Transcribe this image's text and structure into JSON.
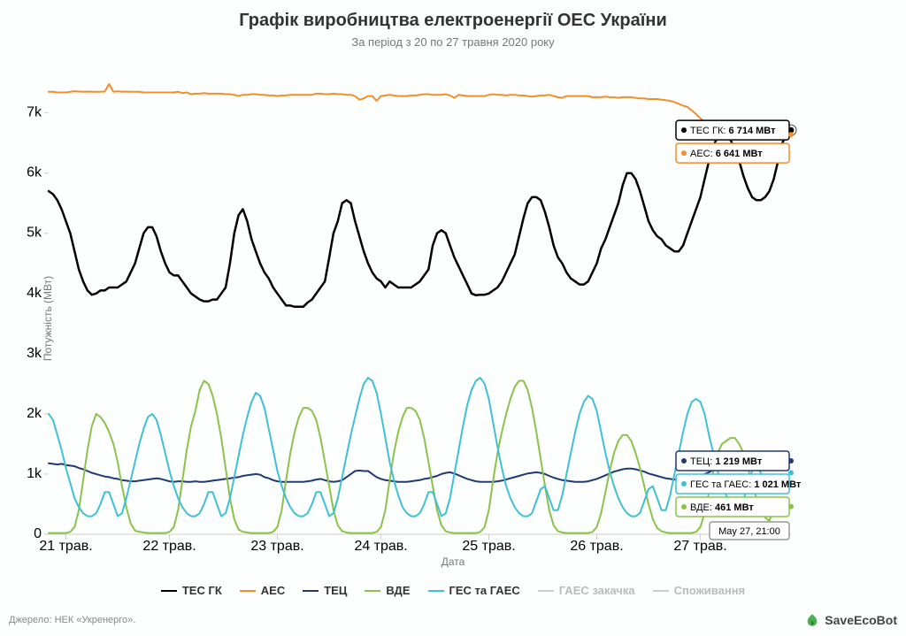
{
  "title": "Графік виробництва електроенергії ОЕС України",
  "subtitle": "За період з 20 по 27 травня 2020 року",
  "xlabel": "Дата",
  "ylabel": "Потужність (МВт)",
  "credits": {
    "left": "Джерело: НЕК «Укренерго».",
    "right": "SaveEcoBot"
  },
  "xlabels": [
    "21 трав.",
    "22 трав.",
    "23 трав.",
    "24 трав.",
    "25 трав.",
    "26 трав.",
    "27 трав."
  ],
  "ylim": [
    0,
    7700
  ],
  "yticks": [
    0,
    1000,
    2000,
    3000,
    4000,
    5000,
    6000,
    7000
  ],
  "yticklabels": [
    "0",
    "1k",
    "2k",
    "3k",
    "4k",
    "5k",
    "6k",
    "7k"
  ],
  "legend": [
    {
      "key": "tes",
      "label": "ТЕС ГК",
      "color": "#000000",
      "active": true
    },
    {
      "key": "aes",
      "label": "АЕС",
      "color": "#f28e2b",
      "active": true
    },
    {
      "key": "tec",
      "label": "ТЕЦ",
      "color": "#1f3b73",
      "active": true
    },
    {
      "key": "vde",
      "label": "ВДЕ",
      "color": "#8bc34a",
      "active": true
    },
    {
      "key": "hes",
      "label": "ГЕС та ГАЕС",
      "color": "#3fc0d6",
      "active": true
    },
    {
      "key": "gaes_pump",
      "label": "ГАЕС закачка",
      "color": "#bbbbbb",
      "active": false
    },
    {
      "key": "cons",
      "label": "Споживання",
      "color": "#bbbbbb",
      "active": false
    }
  ],
  "hover": {
    "time_label": "May 27, 21:00",
    "points": [
      {
        "key": "tes",
        "label": "ТЕС ГК:",
        "value": "6 714 МВт",
        "y": 6714,
        "color": "#000000"
      },
      {
        "key": "aes",
        "label": "АЕС:",
        "value": "6 641 МВт",
        "y": 6641,
        "color": "#f28e2b"
      },
      {
        "key": "tec",
        "label": "ТЕЦ:",
        "value": "1 219 МВт",
        "y": 1219,
        "color": "#1f3b73"
      },
      {
        "key": "hes",
        "label": "ГЕС та ГАЕС:",
        "value": "1 021 МВт",
        "y": 1021,
        "color": "#3fc0d6"
      },
      {
        "key": "vde",
        "label": "ВДЕ:",
        "value": "461 МВт",
        "y": 461,
        "color": "#8bc34a"
      }
    ]
  },
  "series": {
    "aes": {
      "color": "#f28e2b",
      "width": 2,
      "data": [
        7350,
        7350,
        7340,
        7340,
        7340,
        7350,
        7360,
        7355,
        7350,
        7355,
        7350,
        7350,
        7350,
        7355,
        7480,
        7350,
        7360,
        7350,
        7355,
        7350,
        7350,
        7350,
        7340,
        7340,
        7340,
        7340,
        7340,
        7340,
        7340,
        7340,
        7350,
        7330,
        7340,
        7310,
        7320,
        7320,
        7330,
        7320,
        7320,
        7320,
        7320,
        7310,
        7310,
        7300,
        7280,
        7300,
        7300,
        7310,
        7310,
        7300,
        7300,
        7290,
        7290,
        7280,
        7290,
        7290,
        7300,
        7300,
        7300,
        7300,
        7300,
        7300,
        7320,
        7320,
        7310,
        7310,
        7320,
        7310,
        7310,
        7300,
        7300,
        7280,
        7220,
        7240,
        7280,
        7280,
        7200,
        7280,
        7290,
        7300,
        7290,
        7280,
        7280,
        7280,
        7290,
        7290,
        7300,
        7310,
        7310,
        7300,
        7300,
        7300,
        7310,
        7290,
        7250,
        7300,
        7290,
        7280,
        7280,
        7280,
        7280,
        7280,
        7300,
        7310,
        7300,
        7300,
        7290,
        7300,
        7300,
        7290,
        7290,
        7280,
        7270,
        7280,
        7290,
        7290,
        7300,
        7280,
        7260,
        7250,
        7280,
        7280,
        7280,
        7280,
        7280,
        7280,
        7260,
        7260,
        7260,
        7270,
        7260,
        7260,
        7250,
        7260,
        7260,
        7260,
        7250,
        7240,
        7240,
        7230,
        7230,
        7230,
        7220,
        7210,
        7200,
        7180,
        7150,
        7120,
        7100,
        7040,
        6980,
        6910,
        6850,
        6800,
        6770,
        6740,
        6710,
        6690,
        6680,
        6670,
        6660,
        6660,
        6650,
        6640,
        6640,
        6640,
        6641
      ]
    },
    "tes": {
      "color": "#000000",
      "width": 2.5,
      "data": [
        5700,
        5650,
        5550,
        5400,
        5200,
        5000,
        4700,
        4400,
        4200,
        4050,
        3980,
        4000,
        4050,
        4050,
        4100,
        4100,
        4100,
        4150,
        4200,
        4350,
        4500,
        4750,
        5000,
        5100,
        5100,
        4950,
        4700,
        4500,
        4350,
        4300,
        4300,
        4200,
        4100,
        4000,
        3950,
        3900,
        3870,
        3870,
        3900,
        3900,
        4000,
        4100,
        4500,
        5000,
        5300,
        5400,
        5200,
        4900,
        4700,
        4500,
        4350,
        4250,
        4100,
        4000,
        3900,
        3800,
        3800,
        3780,
        3780,
        3780,
        3850,
        3900,
        4000,
        4100,
        4200,
        4600,
        5000,
        5200,
        5500,
        5550,
        5500,
        5200,
        4950,
        4700,
        4500,
        4350,
        4250,
        4200,
        4100,
        4200,
        4150,
        4100,
        4100,
        4100,
        4100,
        4150,
        4200,
        4300,
        4400,
        4800,
        5000,
        5050,
        5000,
        4800,
        4600,
        4450,
        4300,
        4150,
        4000,
        3970,
        3980,
        3980,
        4000,
        4050,
        4100,
        4200,
        4350,
        4500,
        4650,
        4950,
        5250,
        5500,
        5600,
        5600,
        5550,
        5350,
        5100,
        4800,
        4600,
        4500,
        4350,
        4250,
        4200,
        4150,
        4150,
        4200,
        4350,
        4500,
        4750,
        4900,
        5100,
        5300,
        5500,
        5800,
        6000,
        6000,
        5900,
        5700,
        5450,
        5200,
        5050,
        4950,
        4900,
        4800,
        4750,
        4700,
        4700,
        4800,
        5000,
        5200,
        5400,
        5600,
        5900,
        6200,
        6450,
        6600,
        6650,
        6650,
        6550,
        6400,
        6200,
        5950,
        5750,
        5600,
        5550,
        5550,
        5600,
        5700,
        5900,
        6200,
        6500,
        6650,
        6714
      ]
    },
    "tec": {
      "color": "#1f3b73",
      "width": 2,
      "data": [
        1180,
        1170,
        1160,
        1170,
        1150,
        1140,
        1130,
        1100,
        1080,
        1050,
        1020,
        1000,
        980,
        960,
        950,
        930,
        920,
        900,
        890,
        880,
        880,
        890,
        900,
        910,
        920,
        930,
        920,
        900,
        880,
        870,
        880,
        880,
        870,
        870,
        880,
        870,
        870,
        880,
        890,
        900,
        910,
        920,
        930,
        940,
        950,
        970,
        980,
        990,
        1000,
        990,
        950,
        930,
        900,
        880,
        870,
        870,
        870,
        870,
        870,
        870,
        880,
        890,
        910,
        920,
        900,
        880,
        870,
        880,
        900,
        950,
        1000,
        1050,
        1060,
        1050,
        1050,
        1000,
        950,
        920,
        900,
        890,
        880,
        870,
        870,
        870,
        880,
        890,
        900,
        920,
        930,
        950,
        970,
        1000,
        1020,
        1030,
        1010,
        980,
        950,
        920,
        900,
        880,
        870,
        870,
        870,
        870,
        880,
        890,
        910,
        930,
        950,
        970,
        990,
        1010,
        1020,
        1030,
        1020,
        1000,
        970,
        940,
        920,
        900,
        890,
        880,
        870,
        870,
        870,
        880,
        900,
        920,
        950,
        980,
        1010,
        1040,
        1060,
        1080,
        1090,
        1090,
        1080,
        1060,
        1040,
        1010,
        990,
        970,
        950,
        930,
        920,
        910,
        900,
        900,
        910,
        920,
        940,
        970,
        1000,
        1030,
        1070,
        1100,
        1140,
        1160,
        1180,
        1200,
        1210,
        1219
      ]
    },
    "vde": {
      "color": "#8bc34a",
      "width": 2,
      "data": [
        20,
        20,
        20,
        20,
        20,
        40,
        120,
        400,
        900,
        1400,
        1800,
        2000,
        1950,
        1850,
        1700,
        1500,
        1200,
        800,
        450,
        180,
        60,
        40,
        30,
        20,
        20,
        20,
        20,
        20,
        40,
        120,
        400,
        900,
        1400,
        1800,
        2050,
        2400,
        2550,
        2500,
        2300,
        2000,
        1600,
        1100,
        600,
        250,
        80,
        40,
        30,
        20,
        20,
        20,
        20,
        20,
        40,
        120,
        400,
        900,
        1350,
        1700,
        1950,
        2100,
        2100,
        2050,
        1900,
        1600,
        1200,
        800,
        400,
        150,
        50,
        30,
        20,
        20,
        20,
        20,
        20,
        20,
        40,
        120,
        400,
        900,
        1350,
        1700,
        1950,
        2100,
        2100,
        2050,
        1900,
        1600,
        1200,
        800,
        400,
        150,
        50,
        30,
        20,
        20,
        20,
        20,
        20,
        20,
        40,
        120,
        400,
        900,
        1350,
        1700,
        2000,
        2250,
        2450,
        2550,
        2550,
        2400,
        2100,
        1700,
        1250,
        800,
        400,
        150,
        50,
        30,
        20,
        20,
        20,
        20,
        20,
        20,
        40,
        120,
        350,
        700,
        1050,
        1350,
        1550,
        1650,
        1650,
        1550,
        1350,
        1100,
        800,
        500,
        250,
        100,
        50,
        30,
        20,
        20,
        20,
        20,
        20,
        20,
        40,
        120,
        350,
        700,
        1050,
        1350,
        1500,
        1550,
        1600,
        1600,
        1500,
        1350,
        1100,
        850,
        600,
        400,
        280,
        220,
        461
      ]
    },
    "hes": {
      "color": "#3fc0d6",
      "width": 2,
      "data": [
        2000,
        1900,
        1650,
        1400,
        1100,
        850,
        600,
        450,
        350,
        300,
        300,
        350,
        500,
        700,
        700,
        500,
        300,
        350,
        600,
        900,
        1200,
        1500,
        1750,
        1950,
        2000,
        1900,
        1650,
        1350,
        1050,
        800,
        600,
        450,
        350,
        300,
        300,
        350,
        500,
        700,
        700,
        500,
        300,
        350,
        600,
        950,
        1300,
        1650,
        1950,
        2200,
        2350,
        2300,
        2100,
        1750,
        1400,
        1050,
        800,
        600,
        450,
        350,
        300,
        300,
        350,
        500,
        700,
        700,
        500,
        300,
        350,
        600,
        950,
        1300,
        1650,
        1950,
        2250,
        2500,
        2600,
        2550,
        2350,
        2000,
        1600,
        1200,
        900,
        650,
        450,
        350,
        300,
        300,
        350,
        500,
        700,
        700,
        500,
        300,
        350,
        600,
        1000,
        1400,
        1800,
        2150,
        2400,
        2550,
        2600,
        2500,
        2250,
        1850,
        1450,
        1100,
        800,
        600,
        450,
        350,
        300,
        300,
        350,
        550,
        750,
        800,
        600,
        400,
        400,
        650,
        1000,
        1350,
        1700,
        2000,
        2200,
        2300,
        2250,
        2050,
        1700,
        1350,
        1050,
        800,
        600,
        450,
        350,
        300,
        300,
        350,
        550,
        750,
        800,
        600,
        400,
        400,
        650,
        1000,
        1350,
        1700,
        2000,
        2200,
        2250,
        2200,
        2000,
        1650,
        1350,
        1050,
        800,
        650,
        500,
        400,
        380,
        550,
        850,
        1050,
        1150,
        1021
      ]
    }
  },
  "line_width_default": 2,
  "background_color": "#fdfefe",
  "grid_color": "#dddddd",
  "text_color": "#666666"
}
